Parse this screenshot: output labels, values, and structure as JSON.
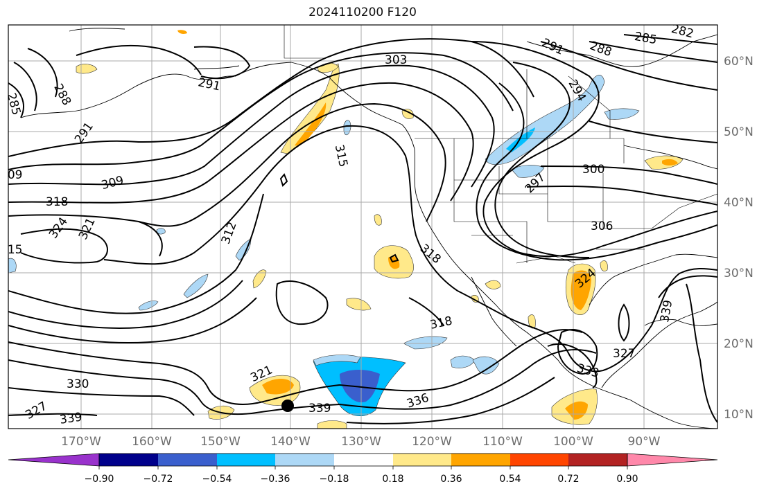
{
  "title": "2024110200 F120",
  "map": {
    "lon_ticks": [
      "170°W",
      "160°W",
      "150°W",
      "140°W",
      "130°W",
      "120°W",
      "110°W",
      "100°W",
      "90°W"
    ],
    "lat_ticks": [
      "60°N",
      "50°N",
      "40°N",
      "30°N",
      "20°N",
      "10°N"
    ],
    "lon_range": [
      -180,
      -80
    ],
    "lat_range": [
      8,
      65
    ],
    "grid": true
  },
  "contour_labels": [
    "282",
    "285",
    "288",
    "291",
    "294",
    "297",
    "300",
    "303",
    "306",
    "309",
    "312",
    "315",
    "318",
    "321",
    "324",
    "327",
    "330",
    "333",
    "336",
    "339"
  ],
  "colorbar": {
    "ticks": [
      "−0.90",
      "−0.72",
      "−0.54",
      "−0.36",
      "−0.18",
      "0.18",
      "0.36",
      "0.54",
      "0.72",
      "0.90"
    ],
    "colors": [
      "#9932cc",
      "#00008b",
      "#3a5fcd",
      "#00bfff",
      "#add8f6",
      "#ffffff",
      "#ffe98a",
      "#ffa500",
      "#ff4500",
      "#b22222",
      "#ff88aa"
    ]
  }
}
